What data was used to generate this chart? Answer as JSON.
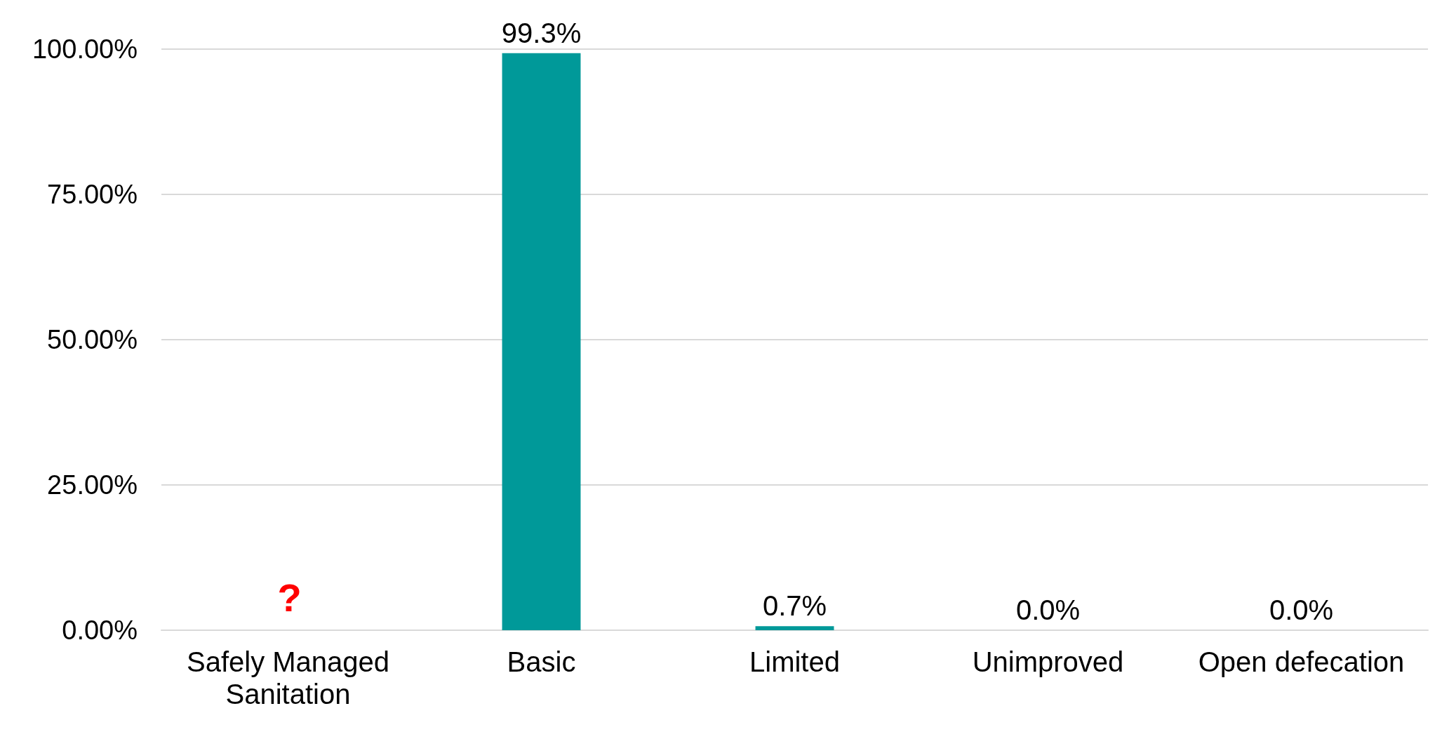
{
  "chart_data": {
    "type": "bar",
    "categories": [
      "Safely Managed Sanitation",
      "Basic",
      "Limited",
      "Unimproved",
      "Open defecation"
    ],
    "values": [
      null,
      99.3,
      0.7,
      0.0,
      0.0
    ],
    "color": "#009999",
    "value_labels": [
      null,
      "99.3%",
      "0.7%",
      "0.0%",
      "0.0%"
    ],
    "annotations": [
      "?"
    ],
    "ylim": [
      0,
      100
    ],
    "yticks": [
      {
        "value": 0,
        "label": "0.00%"
      },
      {
        "value": 25,
        "label": "25.00%"
      },
      {
        "value": 50,
        "label": "50.00%"
      },
      {
        "value": 75,
        "label": "75.00%"
      },
      {
        "value": 100,
        "label": "100.00%"
      }
    ],
    "grid": "y"
  }
}
